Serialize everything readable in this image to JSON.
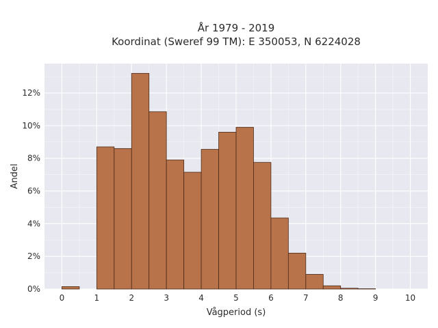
{
  "chart_data": {
    "type": "bar",
    "title_line1": "År 1979 - 2019",
    "title_line2": "Koordinat (Sweref 99 TM): E 350053, N 6224028",
    "xlabel": "Vågperiod (s)",
    "ylabel": "Andel",
    "xlim": [
      -0.5,
      10.5
    ],
    "ylim": [
      0,
      13.8
    ],
    "x_ticks": [
      0,
      1,
      2,
      3,
      4,
      5,
      6,
      7,
      8,
      9,
      10
    ],
    "y_ticks": [
      0,
      2,
      4,
      6,
      8,
      10,
      12
    ],
    "y_tick_suffix": "%",
    "grid": true,
    "bin_width": 0.5,
    "bin_starts": [
      0,
      0.5,
      1,
      1.5,
      2,
      2.5,
      3,
      3.5,
      4,
      4.5,
      5,
      5.5,
      6,
      6.5,
      7,
      7.5,
      8,
      8.5,
      9,
      9.5
    ],
    "values": [
      0.15,
      0,
      8.7,
      8.6,
      13.2,
      10.85,
      7.9,
      7.15,
      8.55,
      9.6,
      9.9,
      7.75,
      4.35,
      2.2,
      0.9,
      0.2,
      0.05,
      0.02,
      0,
      0
    ],
    "colors": {
      "bar_fill": "#b9734b",
      "bar_stroke": "#4a2a18",
      "plot_bg": "#e8e8f0",
      "grid": "#ffffff"
    }
  }
}
